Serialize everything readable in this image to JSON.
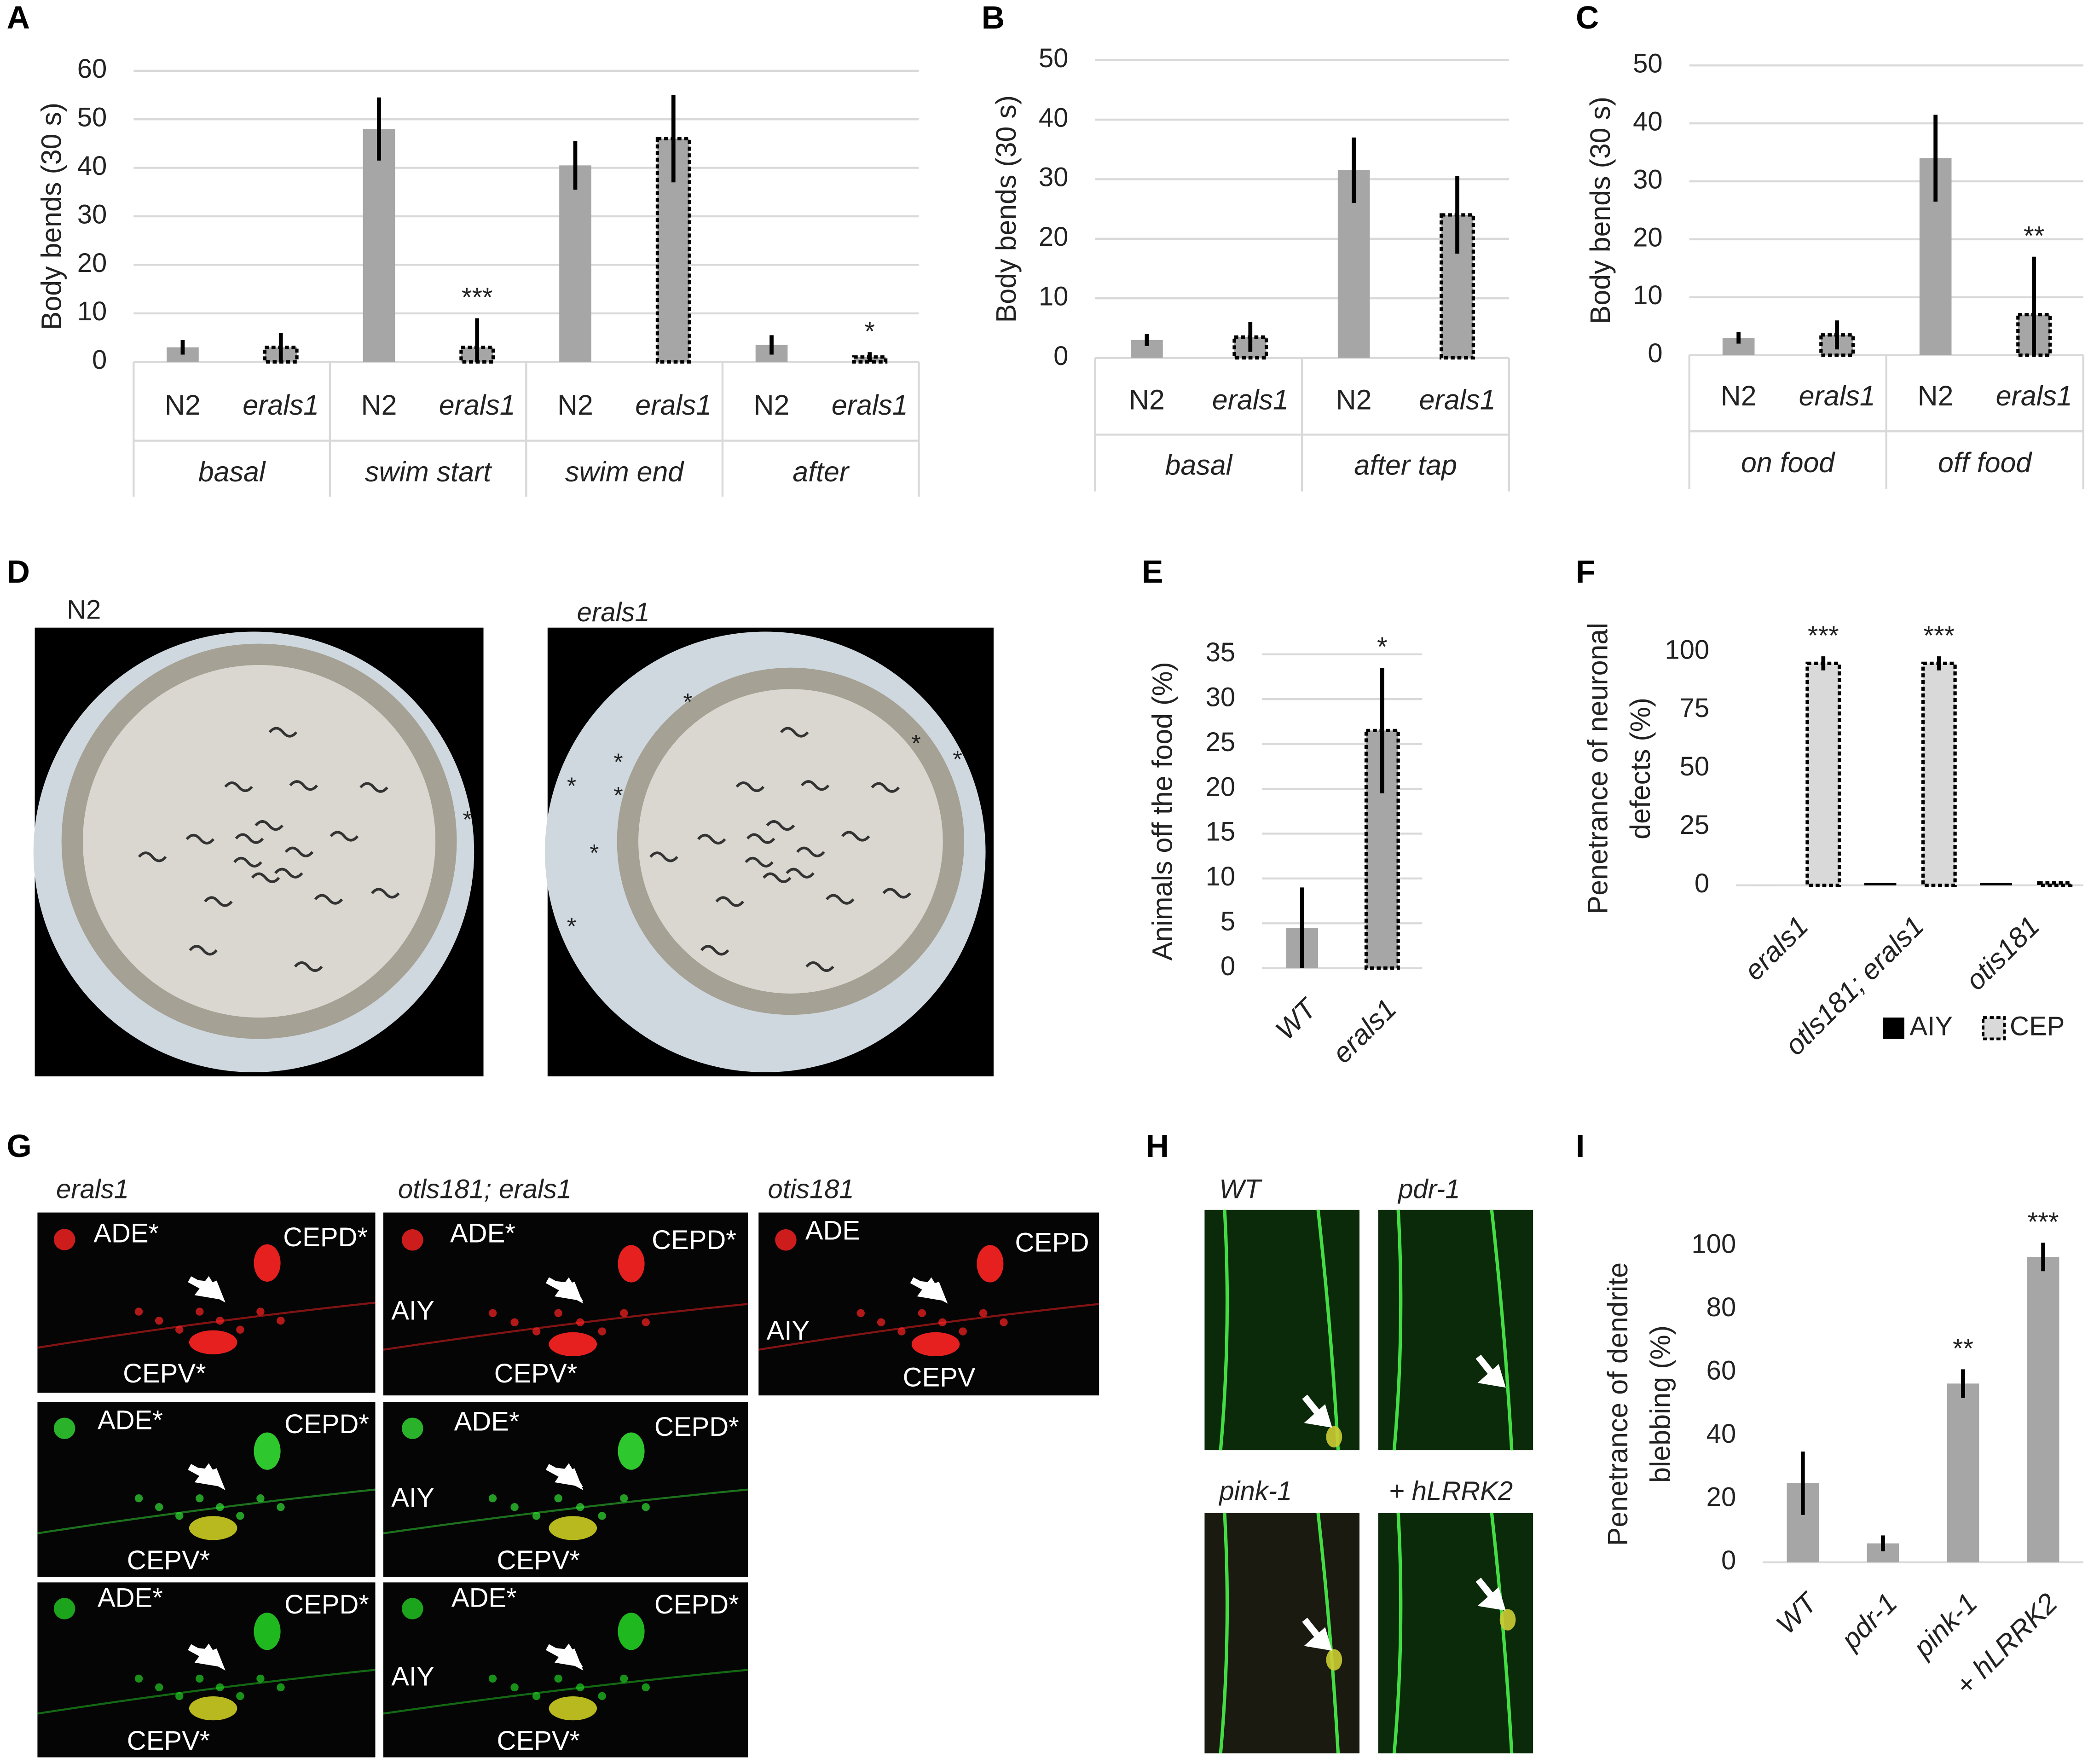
{
  "chart_data": [
    {
      "type": "bar",
      "panel": "A",
      "ylabel": "Body bends (30 s)",
      "categories": [
        "N2",
        "erals1",
        "N2",
        "erals1",
        "N2",
        "erals1",
        "N2",
        "erals1"
      ],
      "groups": [
        "basal",
        "swim start",
        "swim end",
        "after"
      ],
      "values": [
        3,
        3,
        48,
        3,
        40.5,
        46,
        3.5,
        1
      ],
      "errors": [
        1.5,
        3,
        6.5,
        6,
        5,
        9,
        2,
        1
      ],
      "patterns": [
        "solid",
        "dotted",
        "solid",
        "dotted",
        "solid",
        "dotted",
        "solid",
        "dotted"
      ],
      "significance": [
        null,
        null,
        null,
        "***",
        null,
        null,
        null,
        "*"
      ],
      "color": "#a6a6a6",
      "ylim": [
        0,
        60
      ],
      "yticks": [
        0,
        10,
        20,
        30,
        40,
        50,
        60
      ],
      "grid": true
    },
    {
      "type": "bar",
      "panel": "B",
      "ylabel": "Body bends (30 s)",
      "categories": [
        "N2",
        "erals1",
        "N2",
        "erals1"
      ],
      "groups": [
        "basal",
        "after tap"
      ],
      "values": [
        3,
        3.5,
        31.5,
        24
      ],
      "errors": [
        1,
        2.5,
        5.5,
        6.5
      ],
      "patterns": [
        "solid",
        "dotted",
        "solid",
        "dotted"
      ],
      "significance": [
        null,
        null,
        null,
        null
      ],
      "color": "#a6a6a6",
      "ylim": [
        0,
        50
      ],
      "yticks": [
        0,
        10,
        20,
        30,
        40,
        50
      ],
      "grid": true
    },
    {
      "type": "bar",
      "panel": "C",
      "ylabel": "Body bends (30 s)",
      "categories": [
        "N2",
        "erals1",
        "N2",
        "erals1"
      ],
      "groups": [
        "on food",
        "off food"
      ],
      "values": [
        3,
        3.5,
        34,
        7
      ],
      "errors": [
        1,
        2.5,
        7.5,
        10
      ],
      "patterns": [
        "solid",
        "dotted",
        "solid",
        "dotted"
      ],
      "significance": [
        null,
        null,
        null,
        "**"
      ],
      "color": "#a6a6a6",
      "ylim": [
        0,
        50
      ],
      "yticks": [
        0,
        10,
        20,
        30,
        40,
        50
      ],
      "grid": true
    },
    {
      "type": "bar",
      "panel": "E",
      "ylabel": "Animals off the food (%)",
      "categories": [
        "WT",
        "erals1"
      ],
      "values": [
        4.5,
        26.5
      ],
      "errors": [
        4.5,
        7
      ],
      "patterns": [
        "solid",
        "dotted"
      ],
      "significance": [
        null,
        "*"
      ],
      "color": "#a6a6a6",
      "ylim": [
        0,
        35
      ],
      "yticks": [
        0,
        5,
        10,
        15,
        20,
        25,
        30,
        35
      ],
      "grid": true
    },
    {
      "type": "bar",
      "panel": "F",
      "ylabel": [
        "Penetrance of neuronal",
        "defects (%)"
      ],
      "categories": [
        "erals1",
        "otls181; erals1",
        "otis181"
      ],
      "series": [
        {
          "name": "AIY",
          "color": "#000000",
          "pattern": "solid",
          "values": [
            0,
            1,
            1
          ]
        },
        {
          "name": "CEP",
          "color": "#d9d9d9",
          "pattern": "dotted",
          "values": [
            95,
            95,
            1
          ],
          "errors": [
            3,
            3,
            0
          ],
          "significance": [
            "***",
            "***",
            null
          ]
        }
      ],
      "legend": "bottom-right",
      "ylim": [
        0,
        100
      ],
      "yticks": [
        0,
        25,
        50,
        75,
        100
      ],
      "grid": false
    },
    {
      "type": "bar",
      "panel": "I",
      "ylabel": [
        "Penetrance of dendrite",
        "blebbing (%)"
      ],
      "categories": [
        "WT",
        "pdr-1",
        "pink-1",
        "+ hLRRK2"
      ],
      "values": [
        25,
        6,
        56.5,
        96.5
      ],
      "errors": [
        10,
        2.5,
        4.5,
        4.5
      ],
      "patterns": [
        "solid",
        "solid",
        "solid",
        "solid"
      ],
      "significance": [
        null,
        null,
        "**",
        "***"
      ],
      "color": "#a6a6a6",
      "ylim": [
        0,
        100
      ],
      "yticks": [
        0,
        20,
        40,
        60,
        80,
        100
      ],
      "grid": false
    }
  ],
  "figure": {
    "D": {
      "panel": "D",
      "labels": [
        "N2",
        "erals1"
      ],
      "star": "*"
    },
    "G": {
      "panel": "G",
      "headers": [
        "erals1",
        "otls181; erals1",
        "otis181"
      ],
      "labels": {
        "ade_s": "ADE*",
        "cepd_s": "CEPD*",
        "cepv_s": "CEPV*",
        "aiy": "AIY",
        "ade": "ADE",
        "cepd": "CEPD",
        "cepv": "CEPV"
      }
    },
    "H": {
      "panel": "H",
      "headers": [
        "WT",
        "pdr-1",
        "pink-1",
        "+ hLRRK2"
      ]
    }
  }
}
